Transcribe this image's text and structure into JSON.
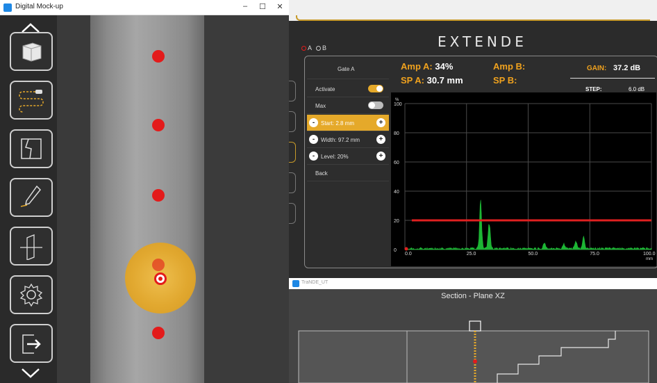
{
  "left_window": {
    "title": "Digital Mock-up",
    "controls": {
      "minimize": "–",
      "maximize": "☐",
      "close": "✕"
    },
    "tools": [
      {
        "name": "part-3d"
      },
      {
        "name": "scan-path"
      },
      {
        "name": "crack-defect"
      },
      {
        "name": "pen-edit"
      },
      {
        "name": "section-plane"
      },
      {
        "name": "settings"
      },
      {
        "name": "exit"
      }
    ]
  },
  "right_app": {
    "logo": "EXTENDE",
    "gate_select": {
      "a": "A",
      "b": "B",
      "selected": "A"
    },
    "menu": {
      "title": "Gate A",
      "activate_label": "Activate",
      "activate_on": true,
      "max_label": "Max",
      "max_on": false,
      "start_label": "Start: 2.8 mm",
      "width_label": "Width: 97.2 mm",
      "level_label": "Level: 20%",
      "back_label": "Back"
    },
    "readout": {
      "amp_a_label": "Amp A:",
      "amp_a_value": "34%",
      "amp_b_label": "Amp B:",
      "amp_b_value": "",
      "sp_a_label": "SP A:",
      "sp_a_value": "30.7 mm",
      "sp_b_label": "SP B:",
      "sp_b_value": "",
      "gain_label": "GAIN:",
      "gain_value": "37.2 dB",
      "step_label": "STEP:",
      "step_value": "6.0 dB"
    }
  },
  "chart_data": {
    "type": "line",
    "y_unit": "%",
    "x_unit": "mm",
    "ylim": [
      0,
      100
    ],
    "xlim": [
      0,
      100
    ],
    "y_ticks": [
      "100",
      "80",
      "60",
      "40",
      "20",
      "0"
    ],
    "x_ticks": [
      "0.0",
      "25.0",
      "50.0",
      "75.0",
      "100.0"
    ],
    "grid": true,
    "gate": {
      "start": 2.8,
      "width": 97.2,
      "level": 20,
      "color": "#e02020"
    },
    "signal_color": "#1db534",
    "signal_peaks": [
      {
        "x": 30.7,
        "amp": 34
      },
      {
        "x": 34.2,
        "amp": 22
      },
      {
        "x": 56.5,
        "amp": 5
      },
      {
        "x": 64.5,
        "amp": 4
      },
      {
        "x": 69.3,
        "amp": 6
      },
      {
        "x": 72.5,
        "amp": 9
      }
    ]
  },
  "bottom_window": {
    "title": "TraNDE_UT",
    "section_title": "Section - Plane XZ"
  }
}
